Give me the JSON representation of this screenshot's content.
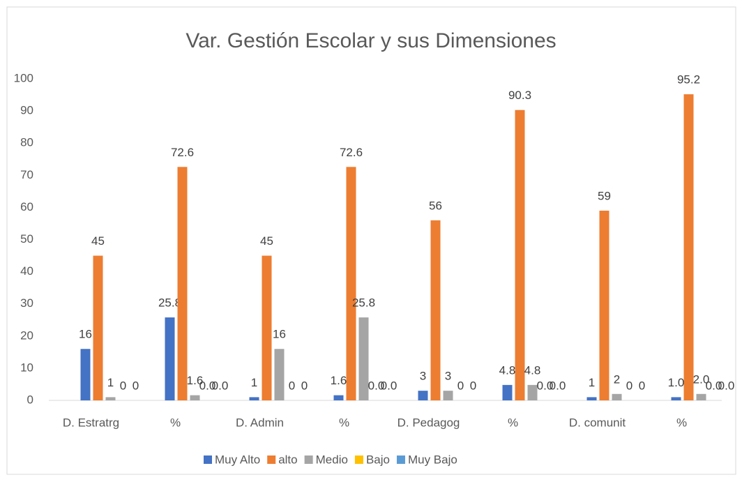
{
  "chart_data": {
    "type": "bar",
    "title": "Var. Gestión Escolar y sus Dimensiones",
    "categories": [
      "D. Estratrg",
      "%",
      "D. Admin",
      "%",
      "D. Pedagog",
      "%",
      "D. comunit",
      "%"
    ],
    "series": [
      {
        "name": "Muy Alto",
        "color": "#4472c4",
        "values": [
          16,
          25.8,
          1,
          1.6,
          3,
          4.8,
          1,
          1.0
        ],
        "value_labels": [
          "16",
          "25.8",
          "1",
          "1.6",
          "3",
          "4.8",
          "1",
          "1.0"
        ]
      },
      {
        "name": "alto",
        "color": "#ed7d31",
        "values": [
          45,
          72.6,
          45,
          72.6,
          56,
          90.3,
          59,
          95.2
        ]
      },
      {
        "name": "Medio",
        "color": "#a5a5a5",
        "values": [
          1,
          1.6,
          16,
          25.8,
          3,
          4.8,
          2,
          2.0
        ],
        "value_labels": [
          "1",
          "1.6",
          "16",
          "25.8",
          "3",
          "4.8",
          "2",
          "2.0"
        ]
      },
      {
        "name": "Bajo",
        "color": "#ffc000",
        "values": [
          0,
          0,
          0,
          0,
          0,
          0,
          0,
          0
        ],
        "value_labels": [
          "0",
          "0.0",
          "0",
          "0.0",
          "0",
          "0.0",
          "0",
          "0.0"
        ]
      },
      {
        "name": "Muy Bajo",
        "color": "#5b9bd5",
        "values": [
          0,
          0,
          0,
          0,
          0,
          0,
          0,
          0
        ],
        "value_labels": [
          "0",
          "0.0",
          "0",
          "0.0",
          "0",
          "0.0",
          "0",
          "0.0"
        ]
      }
    ],
    "ylim": [
      0,
      100
    ],
    "yticks": [
      0,
      10,
      20,
      30,
      40,
      50,
      60,
      70,
      80,
      90,
      100
    ],
    "grid": false,
    "legend": "bottom"
  }
}
